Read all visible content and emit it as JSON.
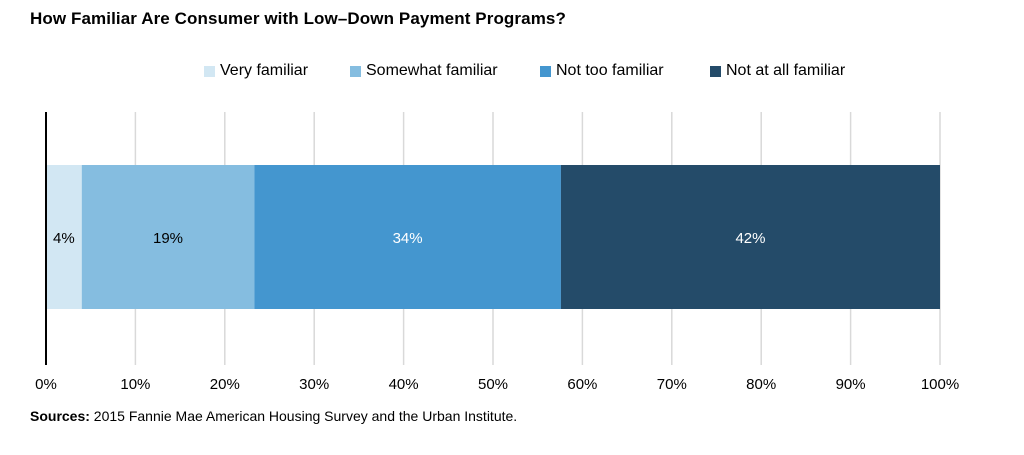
{
  "chart_data": {
    "type": "bar",
    "orientation": "horizontal",
    "stacked": true,
    "title": "How Familiar Are Consumer with Low–Down Payment Programs?",
    "categories": [
      ""
    ],
    "series": [
      {
        "name": "Very familiar",
        "values": [
          4
        ],
        "label": "4%",
        "color": "#d2e7f3",
        "label_color": "#000000"
      },
      {
        "name": "Somewhat familiar",
        "values": [
          19.3
        ],
        "label": "19%",
        "color": "#85bde0",
        "label_color": "#000000"
      },
      {
        "name": "Not too familiar",
        "values": [
          34.3
        ],
        "label": "34%",
        "color": "#4496cf",
        "label_color": "#ffffff"
      },
      {
        "name": "Not at all familiar",
        "values": [
          42.4
        ],
        "label": "42%",
        "color": "#244b69",
        "label_color": "#ffffff"
      }
    ],
    "xlim": [
      0,
      100
    ],
    "xticks": [
      0,
      10,
      20,
      30,
      40,
      50,
      60,
      70,
      80,
      90,
      100
    ],
    "xtick_labels": [
      "0%",
      "10%",
      "20%",
      "30%",
      "40%",
      "50%",
      "60%",
      "70%",
      "80%",
      "90%",
      "100%"
    ],
    "grid": true,
    "legend_position": "top-center"
  },
  "source": {
    "label": "Sources:",
    "text": " 2015 Fannie Mae American Housing Survey and the Urban Institute."
  }
}
